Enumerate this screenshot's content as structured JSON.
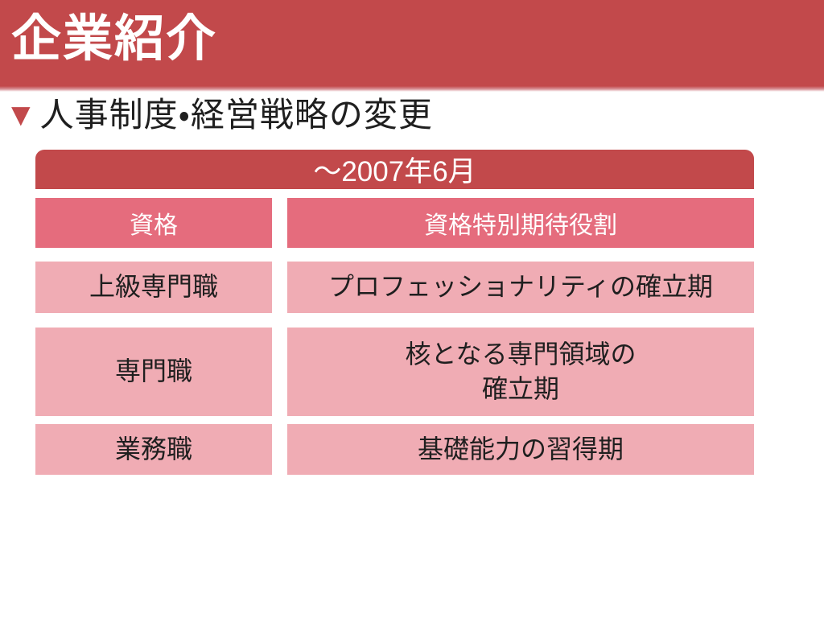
{
  "slide": {
    "title": "企業紹介",
    "section_bullet": "▼",
    "section_heading": "人事制度・経営戦略の変更"
  },
  "table": {
    "title": "～2007年6月",
    "columns": {
      "qualification": "資格",
      "role": "資格特別期待役割"
    },
    "rows": [
      {
        "qualification": "上級専門職",
        "role": "プロフェッショナリティの確立期"
      },
      {
        "qualification": "専門職",
        "role": "核となる専門領域の\n確立期"
      },
      {
        "qualification": "業務職",
        "role": "基礎能力の習得期"
      }
    ]
  },
  "colors": {
    "banner_red": "#C2494B",
    "header_pink": "#E56C7D",
    "cell_pink": "#F0ACB4",
    "text_dark": "#1F1F1F",
    "text_white": "#FFFFFF"
  }
}
